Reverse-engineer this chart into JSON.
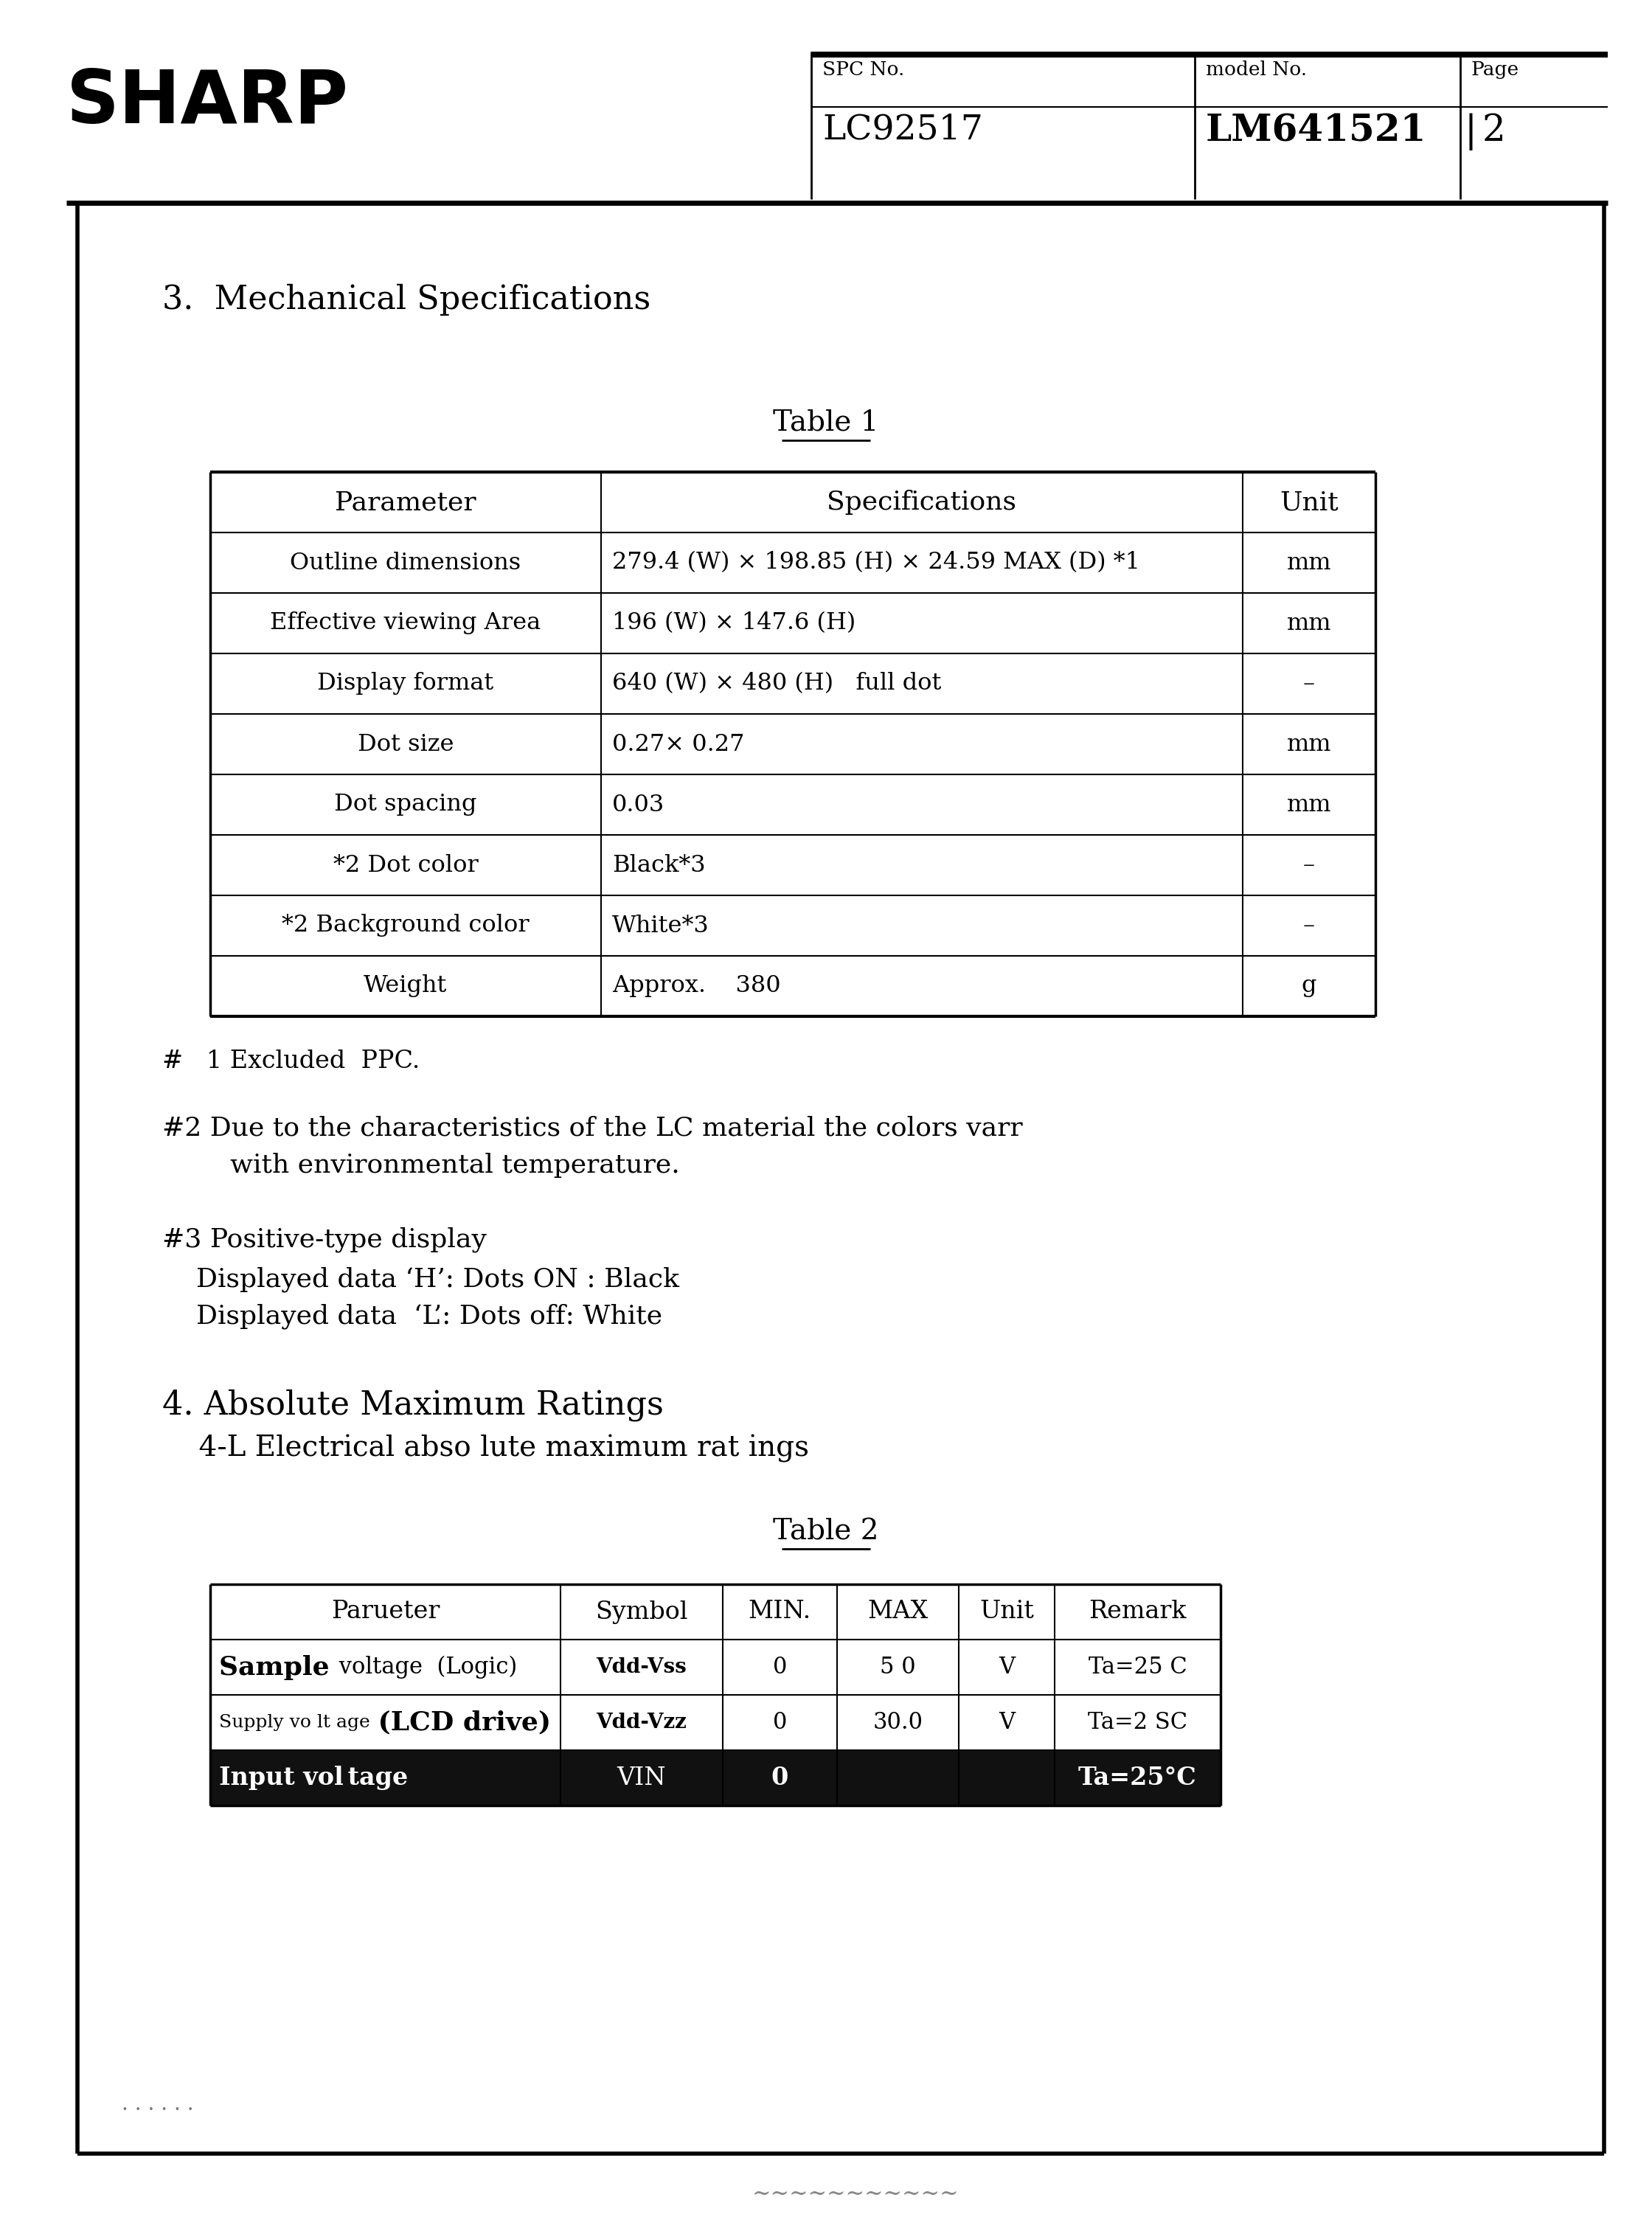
{
  "page_bg": "#ffffff",
  "header": {
    "company": "SHARP",
    "spc_label": "SPC No.",
    "spc_value": "LC92517",
    "model_label": "model No.",
    "model_value": "LM641521",
    "page_label": "Page",
    "page_value": "2"
  },
  "section3_title": "3.  Mechanical Specifications",
  "table1_title": "Table 1",
  "table1_headers": [
    "Parameter",
    "Specifications",
    "Unit"
  ],
  "table1_rows": [
    [
      "Outline dimensions",
      "279.4 (W) × 198.85 (H) × 24.59 MAX (D) *1",
      "mm"
    ],
    [
      "Effective viewing Area",
      "196 (W) × 147.6 (H)",
      "mm"
    ],
    [
      "Display format",
      "640 (W) × 480 (H)   full dot",
      "–"
    ],
    [
      "Dot size",
      "0.27× 0.27",
      "mm"
    ],
    [
      "Dot spacing",
      "0.03",
      "mm"
    ],
    [
      "*2 Dot color",
      "Black*3",
      "–"
    ],
    [
      "*2 Background color",
      "White*3",
      "–"
    ],
    [
      "Weight",
      "Approx.    380",
      "g"
    ]
  ],
  "note1": "#   1 Excluded  PPC.",
  "note2a": "#2 Due to the characteristics of the LC material the colors varr",
  "note2b": "        with environmental temperature.",
  "note3_title": "#3 Positive-type display",
  "note3_line1": "    Displayed data ‘H’: Dots ON : Black",
  "note3_line2": "    Displayed data  ‘L’: Dots off: White",
  "section4_title": "4. Absolute Maximum Ratings",
  "section4_sub": "    4-L Electrical abso lute maximum rat ings",
  "table2_title": "Table 2",
  "table2_headers": [
    "Parueter",
    "Symbol",
    "MIN.",
    "MAX",
    "Unit",
    "Remark"
  ],
  "table2_row0": [
    "Sample  voltage  (Logic)",
    "Vdd-Vss",
    "0",
    "5 0",
    "V",
    "Ta=25 C"
  ],
  "table2_row1": [
    "Supply vo lt age  (LCD drive)",
    "Vdd-Vzz",
    "0",
    "30.0",
    "V",
    "Ta=2 SC"
  ],
  "table2_row2": [
    "Input vol tage",
    "VIN",
    "0",
    "",
    "",
    "Ta=25°C"
  ],
  "bottom_dots": ". . . . . .",
  "bottom_squiggle": "~~~~~~~~~~~"
}
